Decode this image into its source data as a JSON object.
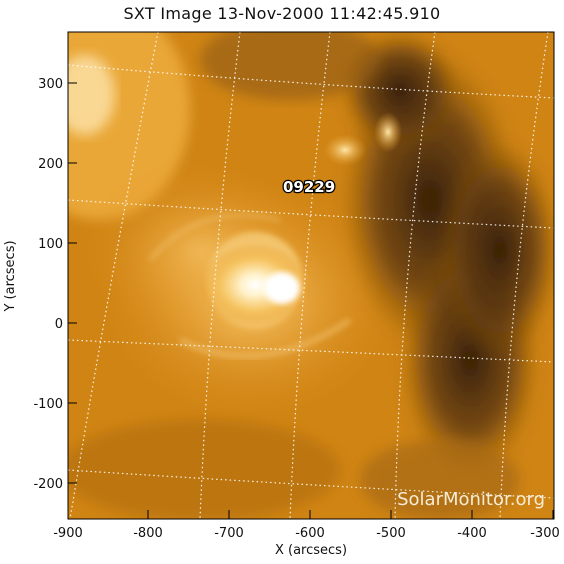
{
  "title": "SXT Image 13-Nov-2000 11:42:45.910",
  "xaxis": {
    "label": "X (arcsecs)",
    "ticks": [
      "-900",
      "-800",
      "-700",
      "-600",
      "-500",
      "-400",
      "-300"
    ]
  },
  "yaxis": {
    "label": "Y (arcsecs)",
    "ticks": [
      "300",
      "200",
      "100",
      "0",
      "-100",
      "-200"
    ]
  },
  "region_label": "09229",
  "watermark": "SolarMonitor.org",
  "colors": {
    "frame": "#000000",
    "bright": "#fff4d8",
    "mid": "#e89a1c",
    "dark": "#3a2208"
  }
}
